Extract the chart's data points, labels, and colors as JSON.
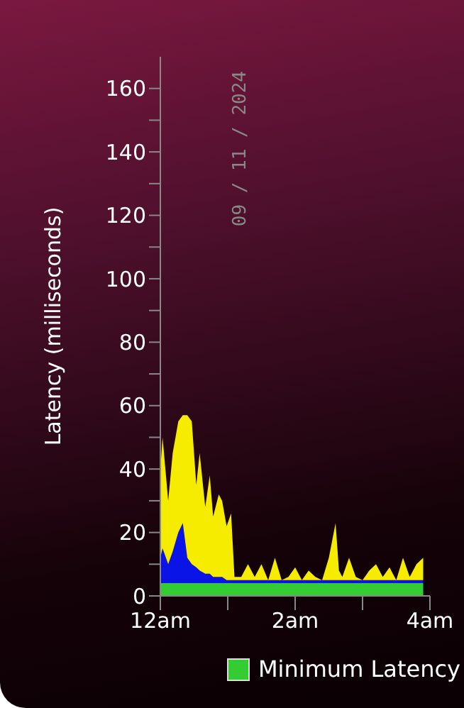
{
  "chart_data": {
    "type": "area",
    "stacked": true,
    "ylabel": "Latency (milliseconds)",
    "annotations": [
      "09 / 11 / 2024"
    ],
    "legend": "bottom",
    "grid": false,
    "marker": "none",
    "x": [
      "2024-09-11T00:00",
      "2024-09-11T00:02",
      "2024-09-11T00:07",
      "2024-09-11T00:11",
      "2024-09-11T00:16",
      "2024-09-11T00:20",
      "2024-09-11T00:24",
      "2024-09-11T00:28",
      "2024-09-11T00:32",
      "2024-09-11T00:35",
      "2024-09-11T00:40",
      "2024-09-11T00:44",
      "2024-09-11T00:47",
      "2024-09-11T00:52",
      "2024-09-11T00:55",
      "2024-09-11T00:59",
      "2024-09-11T01:03",
      "2024-09-11T01:06",
      "2024-09-11T01:12",
      "2024-09-11T01:18",
      "2024-09-11T01:24",
      "2024-09-11T01:30",
      "2024-09-11T01:36",
      "2024-09-11T01:42",
      "2024-09-11T01:48",
      "2024-09-11T01:54",
      "2024-09-11T02:00",
      "2024-09-11T02:06",
      "2024-09-11T02:12",
      "2024-09-11T02:18",
      "2024-09-11T02:24",
      "2024-09-11T02:30",
      "2024-09-11T02:36",
      "2024-09-11T02:39",
      "2024-09-11T02:42",
      "2024-09-11T02:48",
      "2024-09-11T02:54",
      "2024-09-11T03:00",
      "2024-09-11T03:06",
      "2024-09-11T03:12",
      "2024-09-11T03:18",
      "2024-09-11T03:24",
      "2024-09-11T03:30",
      "2024-09-11T03:36",
      "2024-09-11T03:42",
      "2024-09-11T03:48",
      "2024-09-11T03:54"
    ],
    "xlim": [
      "2024-09-11T00:00",
      "2024-09-11T04:00"
    ],
    "xticks": [
      {
        "value": "2024-09-11T00:00",
        "label": "12am"
      },
      {
        "value": "2024-09-11T01:00",
        "label": null
      },
      {
        "value": "2024-09-11T02:00",
        "label": "2am"
      },
      {
        "value": "2024-09-11T03:00",
        "label": null
      },
      {
        "value": "2024-09-11T04:00",
        "label": "4am"
      }
    ],
    "ylim": [
      0,
      170
    ],
    "yticks": [
      0,
      {
        "value": 10,
        "label": null
      },
      20,
      {
        "value": 30,
        "label": null
      },
      40,
      {
        "value": 50,
        "label": null
      },
      60,
      {
        "value": 70,
        "label": null
      },
      80,
      {
        "value": 90,
        "label": null
      },
      100,
      {
        "value": 110,
        "label": null
      },
      120,
      {
        "value": 130,
        "label": null
      },
      140,
      {
        "value": 150,
        "label": null
      },
      160
    ],
    "series": [
      {
        "name": "Minimum Latency",
        "color": "#33cc33",
        "values": [
          4,
          4,
          4,
          4,
          4,
          4,
          4,
          4,
          4,
          4,
          4,
          4,
          4,
          4,
          4,
          4,
          4,
          4,
          4,
          4,
          4,
          4,
          4,
          4,
          4,
          4,
          4,
          4,
          4,
          4,
          4,
          4,
          4,
          4,
          4,
          4,
          4,
          4,
          4,
          4,
          4,
          4,
          4,
          4,
          4,
          4,
          4
        ]
      },
      {
        "color": "#0a14e6",
        "values": [
          8,
          11,
          6,
          10,
          16,
          19,
          8,
          6,
          5,
          4,
          3,
          3,
          2,
          2,
          2,
          1,
          1,
          1,
          1,
          1,
          1,
          1,
          1,
          1,
          1,
          1,
          1,
          1,
          1,
          1,
          1,
          1,
          1,
          1,
          1,
          1,
          1,
          1,
          1,
          1,
          1,
          1,
          1,
          1,
          1,
          1,
          1
        ]
      },
      {
        "color": "#f5ec00",
        "values": [
          28,
          35,
          20,
          31,
          35,
          34,
          45,
          45,
          26,
          37,
          21,
          31,
          19,
          26,
          24,
          17,
          21,
          1,
          1,
          5,
          1,
          5,
          0,
          7,
          0,
          1,
          4,
          0,
          3,
          1,
          0,
          7,
          18,
          3,
          1,
          7,
          1,
          0,
          3,
          5,
          1,
          4,
          0,
          7,
          1,
          5,
          7
        ]
      }
    ]
  }
}
